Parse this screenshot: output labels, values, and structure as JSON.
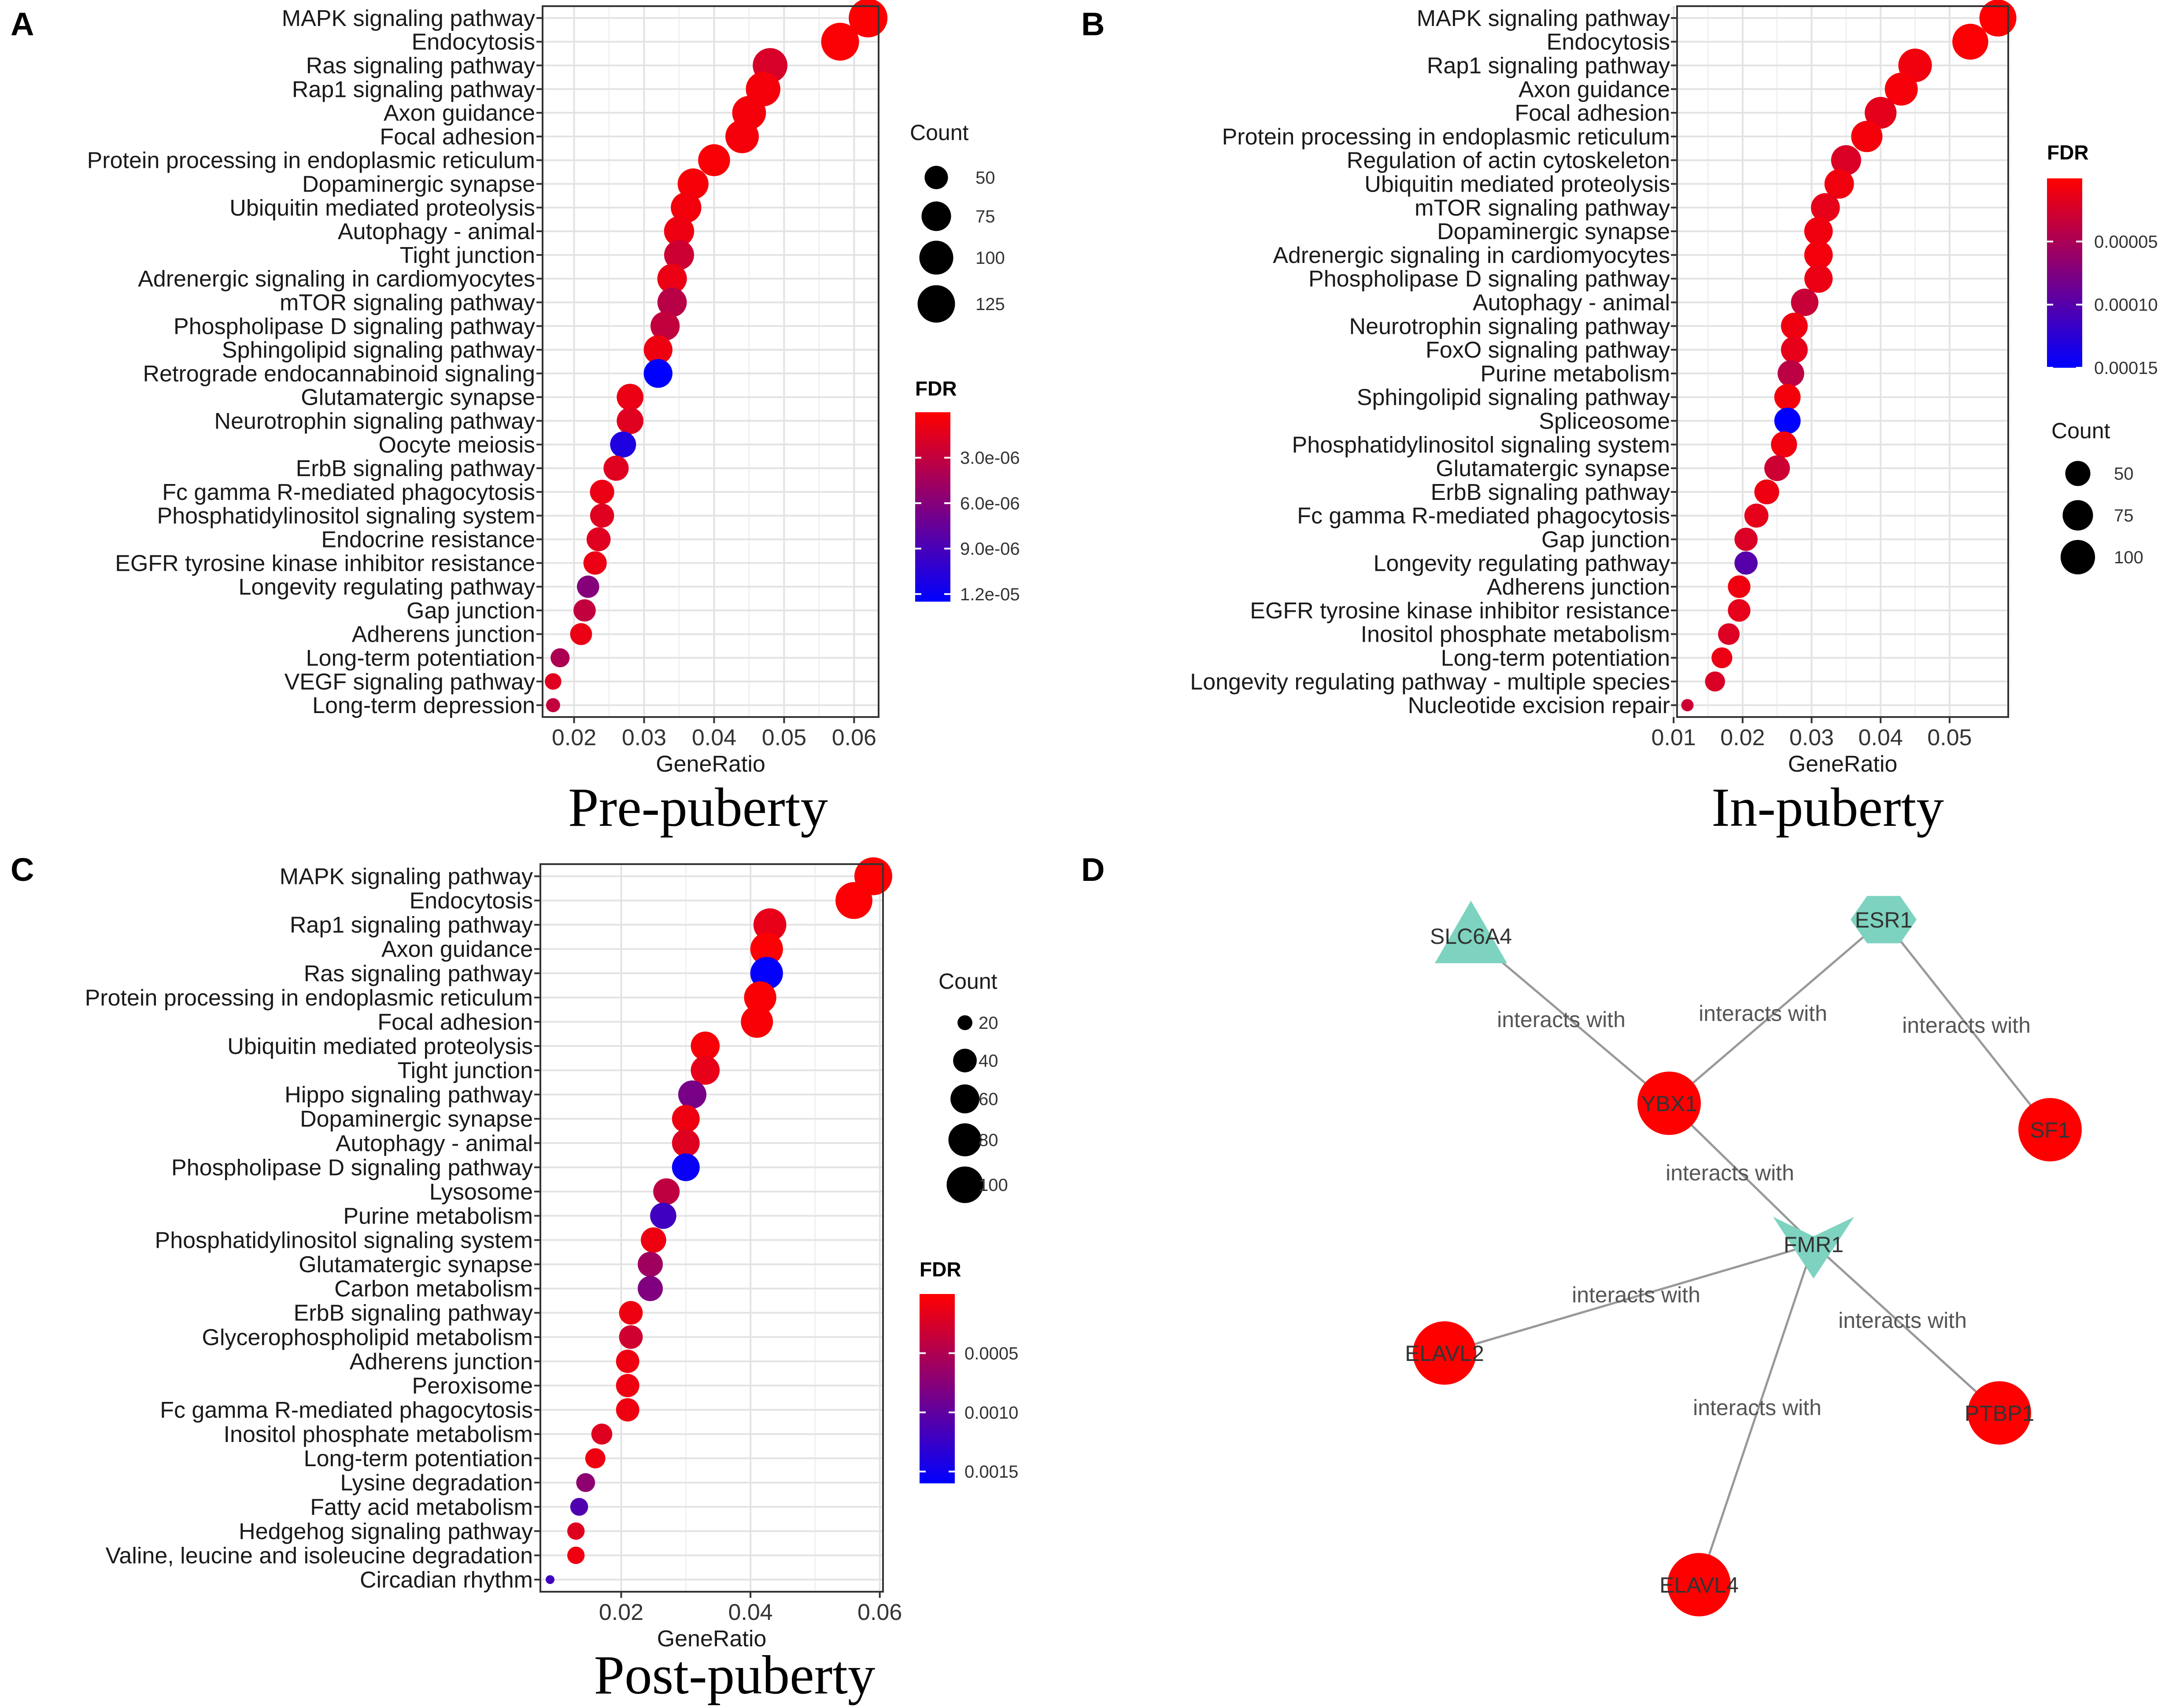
{
  "panel_letters": [
    "A",
    "B",
    "C",
    "D"
  ],
  "captions": {
    "A": "Pre-puberty",
    "B": "In-puberty",
    "C": "Post-puberty"
  },
  "chart_data": [
    {
      "panel": "A",
      "type": "scatter",
      "subtype": "dot-plot",
      "title": "Pre-puberty",
      "xlabel": "GeneRatio",
      "xlim": [
        0.0155,
        0.0635
      ],
      "xticks": [
        0.02,
        0.03,
        0.04,
        0.05,
        0.06
      ],
      "xtick_labels": [
        "0.02",
        "0.03",
        "0.04",
        "0.05",
        "0.06"
      ],
      "count_legend": {
        "title": "Count",
        "values": [
          50,
          75,
          100,
          125
        ]
      },
      "fdr_legend": {
        "title": "FDR",
        "min": 0,
        "max": 1.25e-05,
        "ticks": [
          3e-06,
          6e-06,
          9e-06,
          1.2e-05
        ],
        "tick_labels": [
          "3.0e-06",
          "6.0e-06",
          "9.0e-06",
          "1.2e-05"
        ],
        "low_color": "#ff0000",
        "high_color": "#0000ff"
      },
      "points": [
        {
          "term": "MAPK signaling pathway",
          "ratio": 0.062,
          "count": 135,
          "fdr": 1e-07
        },
        {
          "term": "Endocytosis",
          "ratio": 0.058,
          "count": 128,
          "fdr": 2e-07
        },
        {
          "term": "Ras signaling pathway",
          "ratio": 0.048,
          "count": 105,
          "fdr": 2e-06
        },
        {
          "term": "Rap1 signaling pathway",
          "ratio": 0.047,
          "count": 104,
          "fdr": 5e-07
        },
        {
          "term": "Axon guidance",
          "ratio": 0.045,
          "count": 99,
          "fdr": 5e-07
        },
        {
          "term": "Focal adhesion",
          "ratio": 0.044,
          "count": 97,
          "fdr": 5e-07
        },
        {
          "term": "Protein processing in endoplasmic reticulum",
          "ratio": 0.04,
          "count": 88,
          "fdr": 3e-07
        },
        {
          "term": "Dopaminergic synapse",
          "ratio": 0.037,
          "count": 82,
          "fdr": 4e-07
        },
        {
          "term": "Ubiquitin mediated proteolysis",
          "ratio": 0.036,
          "count": 80,
          "fdr": 6e-07
        },
        {
          "term": "Autophagy - animal",
          "ratio": 0.035,
          "count": 78,
          "fdr": 8e-07
        },
        {
          "term": "Tight junction",
          "ratio": 0.035,
          "count": 77,
          "fdr": 2.5e-06
        },
        {
          "term": "Adrenergic signaling in cardiomyocytes",
          "ratio": 0.034,
          "count": 75,
          "fdr": 1e-06
        },
        {
          "term": "mTOR signaling pathway",
          "ratio": 0.034,
          "count": 74,
          "fdr": 3.5e-06
        },
        {
          "term": "Phospholipase D signaling pathway",
          "ratio": 0.033,
          "count": 73,
          "fdr": 3e-06
        },
        {
          "term": "Sphingolipid signaling pathway",
          "ratio": 0.032,
          "count": 71,
          "fdr": 8e-07
        },
        {
          "term": "Retrograde endocannabinoid signaling",
          "ratio": 0.032,
          "count": 71,
          "fdr": 1.25e-05
        },
        {
          "term": "Glutamatergic synapse",
          "ratio": 0.028,
          "count": 62,
          "fdr": 1e-06
        },
        {
          "term": "Neurotrophin signaling pathway",
          "ratio": 0.028,
          "count": 62,
          "fdr": 1.5e-06
        },
        {
          "term": "Oocyte meiosis",
          "ratio": 0.027,
          "count": 59,
          "fdr": 1.1e-05
        },
        {
          "term": "ErbB signaling pathway",
          "ratio": 0.026,
          "count": 56,
          "fdr": 1.5e-06
        },
        {
          "term": "Fc gamma R-mediated phagocytosis",
          "ratio": 0.024,
          "count": 53,
          "fdr": 1e-06
        },
        {
          "term": "Phosphatidylinositol signaling system",
          "ratio": 0.024,
          "count": 52,
          "fdr": 1.5e-06
        },
        {
          "term": "Endocrine resistance",
          "ratio": 0.0235,
          "count": 52,
          "fdr": 1.5e-06
        },
        {
          "term": "EGFR tyrosine kinase inhibitor resistance",
          "ratio": 0.023,
          "count": 50,
          "fdr": 1e-06
        },
        {
          "term": "Longevity regulating pathway",
          "ratio": 0.022,
          "count": 47,
          "fdr": 6e-06
        },
        {
          "term": "Gap junction",
          "ratio": 0.0215,
          "count": 47,
          "fdr": 3e-06
        },
        {
          "term": "Adherens junction",
          "ratio": 0.021,
          "count": 46,
          "fdr": 1e-06
        },
        {
          "term": "Long-term potentiation",
          "ratio": 0.018,
          "count": 40,
          "fdr": 4e-06
        },
        {
          "term": "VEGF signaling pathway",
          "ratio": 0.017,
          "count": 37,
          "fdr": 1.5e-06
        },
        {
          "term": "Long-term depression",
          "ratio": 0.017,
          "count": 36,
          "fdr": 3e-06
        }
      ]
    },
    {
      "panel": "B",
      "type": "scatter",
      "subtype": "dot-plot",
      "title": "In-puberty",
      "xlabel": "GeneRatio",
      "xlim": [
        0.0105,
        0.0585
      ],
      "xticks": [
        0.01,
        0.02,
        0.03,
        0.04,
        0.05
      ],
      "xtick_labels": [
        "0.01",
        "0.02",
        "0.03",
        "0.04",
        "0.05"
      ],
      "count_legend": {
        "title": "Count",
        "values": [
          50,
          75,
          100
        ]
      },
      "fdr_legend": {
        "title": "FDR",
        "min": 0,
        "max": 0.00015,
        "ticks": [
          5e-05,
          0.0001,
          0.00015
        ],
        "tick_labels": [
          "0.00005",
          "0.00010",
          "0.00015"
        ],
        "low_color": "#ff0000",
        "high_color": "#0000ff"
      },
      "points": [
        {
          "term": "MAPK signaling pathway",
          "ratio": 0.057,
          "count": 118,
          "fdr": 1e-06
        },
        {
          "term": "Endocytosis",
          "ratio": 0.053,
          "count": 110,
          "fdr": 2e-06
        },
        {
          "term": "Rap1 signaling pathway",
          "ratio": 0.045,
          "count": 94,
          "fdr": 8e-06
        },
        {
          "term": "Axon guidance",
          "ratio": 0.043,
          "count": 90,
          "fdr": 5e-06
        },
        {
          "term": "Focal adhesion",
          "ratio": 0.04,
          "count": 83,
          "fdr": 1.6e-05
        },
        {
          "term": "Protein processing in endoplasmic reticulum",
          "ratio": 0.038,
          "count": 80,
          "fdr": 6e-06
        },
        {
          "term": "Regulation of actin cytoskeleton",
          "ratio": 0.035,
          "count": 73,
          "fdr": 2.2e-05
        },
        {
          "term": "Ubiquitin mediated proteolysis",
          "ratio": 0.034,
          "count": 70,
          "fdr": 8e-06
        },
        {
          "term": "mTOR signaling pathway",
          "ratio": 0.032,
          "count": 67,
          "fdr": 1.5e-05
        },
        {
          "term": "Dopaminergic synapse",
          "ratio": 0.031,
          "count": 65,
          "fdr": 9e-06
        },
        {
          "term": "Adrenergic signaling in cardiomyocytes",
          "ratio": 0.031,
          "count": 65,
          "fdr": 7e-06
        },
        {
          "term": "Phospholipase D signaling pathway",
          "ratio": 0.031,
          "count": 64,
          "fdr": 1.2e-05
        },
        {
          "term": "Autophagy - animal",
          "ratio": 0.029,
          "count": 60,
          "fdr": 3.3e-05
        },
        {
          "term": "Neurotrophin signaling pathway",
          "ratio": 0.0275,
          "count": 57,
          "fdr": 9e-06
        },
        {
          "term": "FoxO signaling pathway",
          "ratio": 0.0275,
          "count": 57,
          "fdr": 1.5e-05
        },
        {
          "term": "Purine metabolism",
          "ratio": 0.027,
          "count": 56,
          "fdr": 4e-05
        },
        {
          "term": "Sphingolipid signaling pathway",
          "ratio": 0.0265,
          "count": 55,
          "fdr": 6e-06
        },
        {
          "term": "Spliceosome",
          "ratio": 0.0265,
          "count": 55,
          "fdr": 0.000152
        },
        {
          "term": "Phosphatidylinositol signaling system",
          "ratio": 0.026,
          "count": 54,
          "fdr": 8e-06
        },
        {
          "term": "Glutamatergic synapse",
          "ratio": 0.025,
          "count": 52,
          "fdr": 3e-05
        },
        {
          "term": "ErbB signaling pathway",
          "ratio": 0.0235,
          "count": 49,
          "fdr": 1e-05
        },
        {
          "term": "Fc gamma R-mediated phagocytosis",
          "ratio": 0.022,
          "count": 46,
          "fdr": 1.5e-05
        },
        {
          "term": "Gap junction",
          "ratio": 0.0205,
          "count": 43,
          "fdr": 2.2e-05
        },
        {
          "term": "Longevity regulating pathway",
          "ratio": 0.0205,
          "count": 43,
          "fdr": 0.0001
        },
        {
          "term": "Adherens junction",
          "ratio": 0.0195,
          "count": 41,
          "fdr": 9e-06
        },
        {
          "term": "EGFR tyrosine kinase inhibitor resistance",
          "ratio": 0.0195,
          "count": 41,
          "fdr": 1.5e-05
        },
        {
          "term": "Inositol phosphate metabolism",
          "ratio": 0.018,
          "count": 38,
          "fdr": 2e-05
        },
        {
          "term": "Long-term potentiation",
          "ratio": 0.017,
          "count": 36,
          "fdr": 1.2e-05
        },
        {
          "term": "Longevity regulating pathway - multiple species",
          "ratio": 0.016,
          "count": 34,
          "fdr": 2.2e-05
        },
        {
          "term": "Nucleotide excision repair",
          "ratio": 0.012,
          "count": 25,
          "fdr": 3e-05
        }
      ]
    },
    {
      "panel": "C",
      "type": "scatter",
      "subtype": "dot-plot",
      "title": "Post-puberty",
      "xlabel": "GeneRatio",
      "xlim": [
        0.0075,
        0.0605
      ],
      "xticks": [
        0.02,
        0.04,
        0.06
      ],
      "xtick_labels": [
        "0.02",
        "0.04",
        "0.06"
      ],
      "count_legend": {
        "title": "Count",
        "values": [
          20,
          40,
          60,
          80,
          100
        ]
      },
      "fdr_legend": {
        "title": "FDR",
        "min": 0,
        "max": 0.0016,
        "ticks": [
          0.0005,
          0.001,
          0.0015
        ],
        "tick_labels": [
          "0.0005",
          "0.0010",
          "0.0015"
        ],
        "low_color": "#ff0000",
        "high_color": "#0000ff"
      },
      "points": [
        {
          "term": "MAPK signaling pathway",
          "ratio": 0.059,
          "count": 108,
          "fdr": 1e-05
        },
        {
          "term": "Endocytosis",
          "ratio": 0.056,
          "count": 102,
          "fdr": 2e-05
        },
        {
          "term": "Rap1 signaling pathway",
          "ratio": 0.043,
          "count": 79,
          "fdr": 0.00015
        },
        {
          "term": "Axon guidance",
          "ratio": 0.0425,
          "count": 78,
          "fdr": 2e-05
        },
        {
          "term": "Ras signaling pathway",
          "ratio": 0.0425,
          "count": 78,
          "fdr": 0.00158
        },
        {
          "term": "Protein processing in endoplasmic reticulum",
          "ratio": 0.0415,
          "count": 76,
          "fdr": 3e-05
        },
        {
          "term": "Focal adhesion",
          "ratio": 0.041,
          "count": 75,
          "fdr": 4e-05
        },
        {
          "term": "Ubiquitin mediated proteolysis",
          "ratio": 0.033,
          "count": 60,
          "fdr": 5e-05
        },
        {
          "term": "Tight junction",
          "ratio": 0.033,
          "count": 60,
          "fdr": 0.00015
        },
        {
          "term": "Hippo signaling pathway",
          "ratio": 0.031,
          "count": 57,
          "fdr": 0.00085
        },
        {
          "term": "Dopaminergic synapse",
          "ratio": 0.03,
          "count": 55,
          "fdr": 0.0001
        },
        {
          "term": "Autophagy - animal",
          "ratio": 0.03,
          "count": 55,
          "fdr": 0.0002
        },
        {
          "term": "Phospholipase D signaling pathway",
          "ratio": 0.03,
          "count": 55,
          "fdr": 0.00155
        },
        {
          "term": "Lysosome",
          "ratio": 0.027,
          "count": 50,
          "fdr": 0.0004
        },
        {
          "term": "Purine metabolism",
          "ratio": 0.0265,
          "count": 49,
          "fdr": 0.0012
        },
        {
          "term": "Phosphatidylinositol signaling system",
          "ratio": 0.025,
          "count": 46,
          "fdr": 0.0001
        },
        {
          "term": "Glutamatergic synapse",
          "ratio": 0.0245,
          "count": 45,
          "fdr": 0.0006
        },
        {
          "term": "Carbon metabolism",
          "ratio": 0.0245,
          "count": 45,
          "fdr": 0.0008
        },
        {
          "term": "ErbB signaling pathway",
          "ratio": 0.0215,
          "count": 40,
          "fdr": 0.0001
        },
        {
          "term": "Glycerophospholipid metabolism",
          "ratio": 0.0215,
          "count": 40,
          "fdr": 0.0003
        },
        {
          "term": "Adherens junction",
          "ratio": 0.021,
          "count": 39,
          "fdr": 0.0001
        },
        {
          "term": "Peroxisome",
          "ratio": 0.021,
          "count": 39,
          "fdr": 0.0001
        },
        {
          "term": "Fc gamma R-mediated phagocytosis",
          "ratio": 0.021,
          "count": 39,
          "fdr": 0.0001
        },
        {
          "term": "Inositol phosphate metabolism",
          "ratio": 0.017,
          "count": 32,
          "fdr": 0.0002
        },
        {
          "term": "Long-term potentiation",
          "ratio": 0.016,
          "count": 30,
          "fdr": 0.0001
        },
        {
          "term": "Lysine degradation",
          "ratio": 0.0145,
          "count": 27,
          "fdr": 0.0007
        },
        {
          "term": "Fatty acid metabolism",
          "ratio": 0.0135,
          "count": 25,
          "fdr": 0.0011
        },
        {
          "term": "Hedgehog signaling pathway",
          "ratio": 0.013,
          "count": 24,
          "fdr": 0.0002
        },
        {
          "term": "Valine, leucine and isoleucine degradation",
          "ratio": 0.013,
          "count": 24,
          "fdr": 0.0001
        },
        {
          "term": "Circadian rhythm",
          "ratio": 0.009,
          "count": 16,
          "fdr": 0.0012
        }
      ]
    }
  ],
  "network": {
    "node_color_red": "#ff0000",
    "node_color_teal": "#7dd3c0",
    "edge_color": "#999999",
    "nodes": [
      {
        "id": "SLC6A4",
        "label": "SLC6A4",
        "shape": "triangle",
        "color": "teal"
      },
      {
        "id": "ESR1",
        "label": "ESR1",
        "shape": "hexagon",
        "color": "teal"
      },
      {
        "id": "YBX1",
        "label": "YBX1",
        "shape": "circle",
        "color": "red"
      },
      {
        "id": "SF1",
        "label": "SF1",
        "shape": "circle",
        "color": "red"
      },
      {
        "id": "FMR1",
        "label": "FMR1",
        "shape": "v",
        "color": "teal"
      },
      {
        "id": "ELAVL2",
        "label": "ELAVL2",
        "shape": "circle",
        "color": "red"
      },
      {
        "id": "PTBP1",
        "label": "PTBP1",
        "shape": "circle",
        "color": "red"
      },
      {
        "id": "ELAVL4",
        "label": "ELAVL4",
        "shape": "circle",
        "color": "red"
      }
    ],
    "edges": [
      {
        "source": "SLC6A4",
        "target": "YBX1",
        "label": "interacts with"
      },
      {
        "source": "ESR1",
        "target": "YBX1",
        "label": "interacts with"
      },
      {
        "source": "ESR1",
        "target": "SF1",
        "label": "interacts with"
      },
      {
        "source": "YBX1",
        "target": "FMR1",
        "label": "interacts with"
      },
      {
        "source": "FMR1",
        "target": "ELAVL2",
        "label": "interacts with"
      },
      {
        "source": "FMR1",
        "target": "PTBP1",
        "label": "interacts with"
      },
      {
        "source": "FMR1",
        "target": "ELAVL4",
        "label": "interacts with"
      }
    ]
  }
}
